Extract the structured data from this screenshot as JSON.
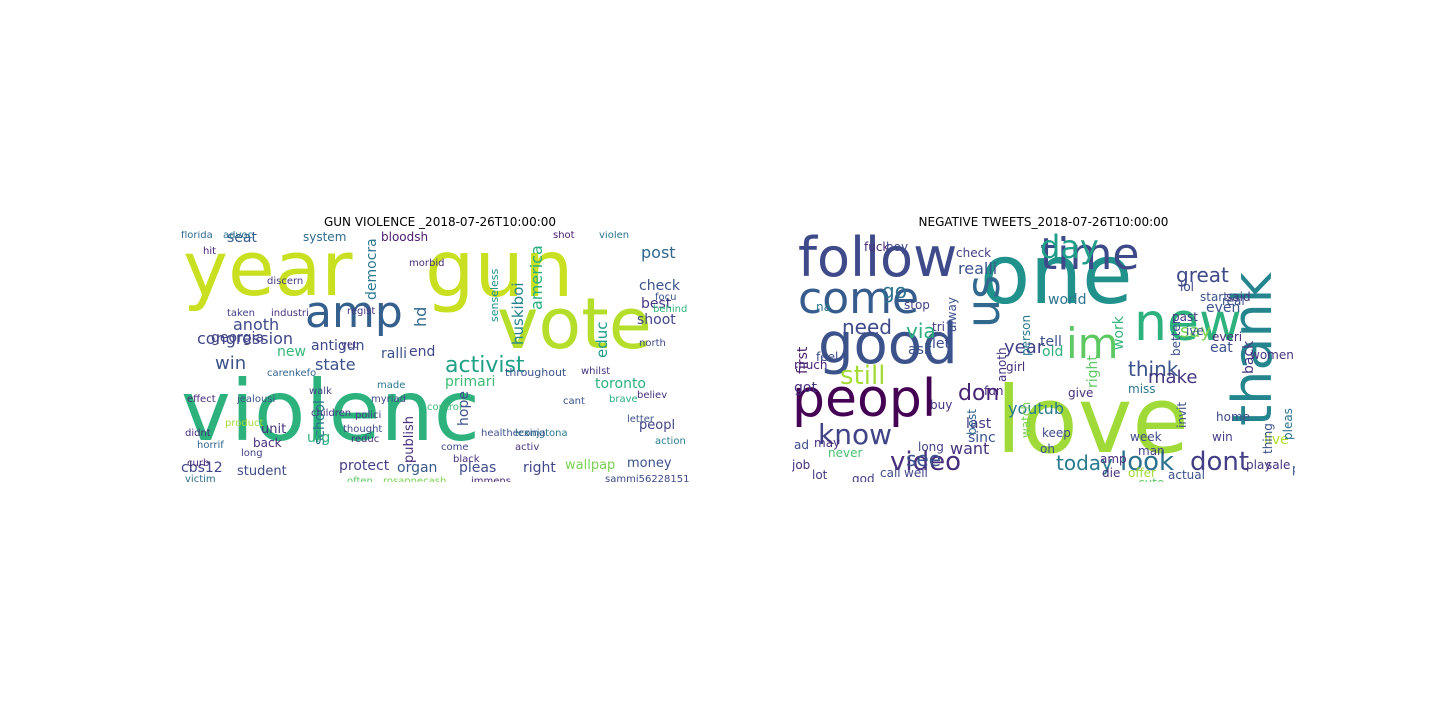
{
  "figure": {
    "left": {
      "title": "GUN VIOLENCE _2018-07-26T10:00:00",
      "words": [
        {
          "text": "violenc",
          "color": "#2db27d"
        },
        {
          "text": "year",
          "color": "#c8e020"
        },
        {
          "text": "gun",
          "color": "#c8e020"
        },
        {
          "text": "vote",
          "color": "#b5de2b"
        },
        {
          "text": "amp",
          "color": "#355f8d"
        },
        {
          "text": "activist",
          "color": "#1fa187"
        },
        {
          "text": "congression",
          "color": "#404688"
        },
        {
          "text": "win",
          "color": "#3b528b"
        },
        {
          "text": "anoth",
          "color": "#3e4a89"
        },
        {
          "text": "georgia",
          "color": "#414487"
        },
        {
          "text": "seat",
          "color": "#365c8d"
        },
        {
          "text": "state",
          "color": "#3b528b"
        },
        {
          "text": "antigun",
          "color": "#3e4989"
        },
        {
          "text": "ralli",
          "color": "#3b528b"
        },
        {
          "text": "democra",
          "color": "#2a788e"
        },
        {
          "text": "bloodsh",
          "color": "#481a6c"
        },
        {
          "text": "system",
          "color": "#306a8e"
        },
        {
          "text": "hd",
          "color": "#31688e"
        },
        {
          "text": "new",
          "color": "#37b878"
        },
        {
          "text": "end",
          "color": "#3f4788"
        },
        {
          "text": "primari",
          "color": "#3dbc74"
        },
        {
          "text": "school",
          "color": "#2c738e"
        },
        {
          "text": "unit",
          "color": "#46337e"
        },
        {
          "text": "back",
          "color": "#472d7b"
        },
        {
          "text": "student",
          "color": "#3e4a89"
        },
        {
          "text": "cbs12",
          "color": "#414487"
        },
        {
          "text": "urg",
          "color": "#2db27d"
        },
        {
          "text": "protect",
          "color": "#433e85"
        },
        {
          "text": "organ",
          "color": "#38588c"
        },
        {
          "text": "publish",
          "color": "#472f7d"
        },
        {
          "text": "pleas",
          "color": "#3e4c8a"
        },
        {
          "text": "right",
          "color": "#3f4788"
        },
        {
          "text": "hope",
          "color": "#3c508b"
        },
        {
          "text": "america",
          "color": "#2ab07f"
        },
        {
          "text": "educ",
          "color": "#1f9e89"
        },
        {
          "text": "huskiboi",
          "color": "#25858e"
        },
        {
          "text": "post",
          "color": "#31688e"
        },
        {
          "text": "check",
          "color": "#3b528b"
        },
        {
          "text": "best",
          "color": "#453781"
        },
        {
          "text": "shoot",
          "color": "#404588"
        },
        {
          "text": "toronto",
          "color": "#2db27d"
        },
        {
          "text": "peopl",
          "color": "#424186"
        },
        {
          "text": "wallpap",
          "color": "#7ad151"
        },
        {
          "text": "money",
          "color": "#3b528b"
        },
        {
          "text": "throughout",
          "color": "#3b528b"
        },
        {
          "text": "senseless",
          "color": "#21918c"
        },
        {
          "text": "florida",
          "color": "#31688e"
        },
        {
          "text": "advoc",
          "color": "#2c728e"
        },
        {
          "text": "hit",
          "color": "#482475"
        },
        {
          "text": "discern",
          "color": "#453882"
        },
        {
          "text": "taken",
          "color": "#424186"
        },
        {
          "text": "industri",
          "color": "#46337e"
        },
        {
          "text": "morbid",
          "color": "#472c7a"
        },
        {
          "text": "shot",
          "color": "#481a6c"
        },
        {
          "text": "violen",
          "color": "#2c728e"
        },
        {
          "text": "jealousi",
          "color": "#3b528b"
        },
        {
          "text": "effect",
          "color": "#482878"
        },
        {
          "text": "didnt",
          "color": "#472c7a"
        },
        {
          "text": "product",
          "color": "#a0da39"
        },
        {
          "text": "children",
          "color": "#453882"
        },
        {
          "text": "polici",
          "color": "#433e85"
        },
        {
          "text": "reduc",
          "color": "#472f7d"
        },
        {
          "text": "control",
          "color": "#3dbc74"
        },
        {
          "text": "come",
          "color": "#3e4989"
        },
        {
          "text": "activ",
          "color": "#46327e"
        },
        {
          "text": "lexingtona",
          "color": "#2a788e"
        },
        {
          "text": "cant",
          "color": "#3b528b"
        },
        {
          "text": "believ",
          "color": "#472f7d"
        },
        {
          "text": "north",
          "color": "#3e4a89"
        },
        {
          "text": "behind",
          "color": "#32b67a"
        },
        {
          "text": "focu",
          "color": "#3b528b"
        },
        {
          "text": "action",
          "color": "#287c8e"
        },
        {
          "text": "long",
          "color": "#424086"
        },
        {
          "text": "curb",
          "color": "#482677"
        },
        {
          "text": "victim",
          "color": "#2e6e8e"
        },
        {
          "text": "often",
          "color": "#5ec962"
        },
        {
          "text": "rosannecash",
          "color": "#7ad151"
        },
        {
          "text": "immens",
          "color": "#472a7a"
        },
        {
          "text": "sammi56228151",
          "color": "#3e4a89"
        },
        {
          "text": "statist",
          "color": "#c2df23"
        },
        {
          "text": "myriad",
          "color": "#3e4989"
        },
        {
          "text": "made",
          "color": "#2a788e"
        },
        {
          "text": "walk",
          "color": "#424186"
        },
        {
          "text": "carenkefo",
          "color": "#32648e"
        },
        {
          "text": "regist",
          "color": "#453781"
        },
        {
          "text": "horrif",
          "color": "#32648e"
        },
        {
          "text": "healtheconja",
          "color": "#3b528b"
        },
        {
          "text": "black",
          "color": "#472e7c"
        },
        {
          "text": "thought",
          "color": "#3e4a89"
        },
        {
          "text": "whilst",
          "color": "#46337e"
        },
        {
          "text": "brave",
          "color": "#29af7f"
        },
        {
          "text": "letter",
          "color": "#3b528b"
        },
        {
          "text": "yet",
          "color": "#453882"
        }
      ]
    },
    "right": {
      "title": "NEGATIVE TWEETS_2018-07-26T10:00:00",
      "words": [
        {
          "text": "love",
          "color": "#a0da39"
        },
        {
          "text": "one",
          "color": "#21918c"
        },
        {
          "text": "peopl",
          "color": "#440154"
        },
        {
          "text": "follow",
          "color": "#3e4a89"
        },
        {
          "text": "good",
          "color": "#3b528b"
        },
        {
          "text": "come",
          "color": "#365c8d"
        },
        {
          "text": "time",
          "color": "#3e4989"
        },
        {
          "text": "new",
          "color": "#2db27d"
        },
        {
          "text": "thank",
          "color": "#25858e"
        },
        {
          "text": "us",
          "color": "#31688e"
        },
        {
          "text": "im",
          "color": "#5ec962"
        },
        {
          "text": "day",
          "color": "#1f9e89"
        },
        {
          "text": "know",
          "color": "#414487"
        },
        {
          "text": "video",
          "color": "#472d7b"
        },
        {
          "text": "look",
          "color": "#2c728e"
        },
        {
          "text": "dont",
          "color": "#433e85"
        },
        {
          "text": "still",
          "color": "#a5db36"
        },
        {
          "text": "need",
          "color": "#3e4a89"
        },
        {
          "text": "via",
          "color": "#2ab07f"
        },
        {
          "text": "go",
          "color": "#2c728e"
        },
        {
          "text": "see",
          "color": "#3b528b"
        },
        {
          "text": "today",
          "color": "#287c8e"
        },
        {
          "text": "don",
          "color": "#482475"
        },
        {
          "text": "great",
          "color": "#3e4989"
        },
        {
          "text": "say",
          "color": "#7ad151"
        },
        {
          "text": "think",
          "color": "#3b528b"
        },
        {
          "text": "make",
          "color": "#453781"
        },
        {
          "text": "year",
          "color": "#424086"
        },
        {
          "text": "realli",
          "color": "#3b528b"
        },
        {
          "text": "first",
          "color": "#481a6c"
        },
        {
          "text": "want",
          "color": "#46327e"
        },
        {
          "text": "youtub",
          "color": "#2a788e"
        },
        {
          "text": "world",
          "color": "#2c738e"
        },
        {
          "text": "right",
          "color": "#5ec962"
        },
        {
          "text": "work",
          "color": "#35b779"
        },
        {
          "text": "let",
          "color": "#3e4a89"
        },
        {
          "text": "ask",
          "color": "#3b528b"
        },
        {
          "text": "last",
          "color": "#453882"
        },
        {
          "text": "sinc",
          "color": "#3b528b"
        },
        {
          "text": "even",
          "color": "#3b528b"
        },
        {
          "text": "live",
          "color": "#b5de2b"
        },
        {
          "text": "back",
          "color": "#453781"
        },
        {
          "text": "eat",
          "color": "#3b528b"
        },
        {
          "text": "fuck",
          "color": "#482878"
        },
        {
          "text": "boy",
          "color": "#3e4a89"
        },
        {
          "text": "check",
          "color": "#433e85"
        },
        {
          "text": "tell",
          "color": "#3b528b"
        },
        {
          "text": "old",
          "color": "#2db27d"
        },
        {
          "text": "give",
          "color": "#472f7d"
        },
        {
          "text": "got",
          "color": "#46337e"
        },
        {
          "text": "much",
          "color": "#482677"
        },
        {
          "text": "ad",
          "color": "#3e4a89"
        },
        {
          "text": "job",
          "color": "#472c7a"
        },
        {
          "text": "lot",
          "color": "#453882"
        },
        {
          "text": "never",
          "color": "#4ac16d"
        },
        {
          "text": "call",
          "color": "#3e4a89"
        },
        {
          "text": "well",
          "color": "#404588"
        },
        {
          "text": "buy",
          "color": "#472f7d"
        },
        {
          "text": "long",
          "color": "#424186"
        },
        {
          "text": "fun",
          "color": "#472a7a"
        },
        {
          "text": "best",
          "color": "#32648e"
        },
        {
          "text": "watch",
          "color": "#7ad151"
        },
        {
          "text": "oh",
          "color": "#3b528b"
        },
        {
          "text": "keep",
          "color": "#3e4a89"
        },
        {
          "text": "amp",
          "color": "#472f7d"
        },
        {
          "text": "die",
          "color": "#46337e"
        },
        {
          "text": "girl",
          "color": "#472e7c"
        },
        {
          "text": "actual",
          "color": "#3b528b"
        },
        {
          "text": "man",
          "color": "#424186"
        },
        {
          "text": "week",
          "color": "#3e4989"
        },
        {
          "text": "miss",
          "color": "#2a788e"
        },
        {
          "text": "real",
          "color": "#3b528b"
        },
        {
          "text": "everi",
          "color": "#472a7a"
        },
        {
          "text": "start",
          "color": "#3b528b"
        },
        {
          "text": "women",
          "color": "#46337e"
        },
        {
          "text": "home",
          "color": "#3e4a89"
        },
        {
          "text": "play",
          "color": "#453781"
        },
        {
          "text": "sale",
          "color": "#472e7c"
        },
        {
          "text": "post",
          "color": "#3b528b"
        },
        {
          "text": "win",
          "color": "#433e85"
        },
        {
          "text": "thing",
          "color": "#3b528b"
        },
        {
          "text": "pleas",
          "color": "#2c728e"
        },
        {
          "text": "lol",
          "color": "#3e4a89"
        },
        {
          "text": "ive",
          "color": "#3b528b"
        },
        {
          "text": "past",
          "color": "#453882"
        },
        {
          "text": "stop",
          "color": "#424186"
        },
        {
          "text": "may",
          "color": "#472f7d"
        },
        {
          "text": "na",
          "color": "#2a788e"
        },
        {
          "text": "alway",
          "color": "#3b528b"
        },
        {
          "text": "tri",
          "color": "#453781"
        },
        {
          "text": "offer",
          "color": "#a0da39"
        },
        {
          "text": "cute",
          "color": "#5ec962"
        },
        {
          "text": "better",
          "color": "#3b528b"
        },
        {
          "text": "said",
          "color": "#453882"
        },
        {
          "text": "person",
          "color": "#2a788e"
        },
        {
          "text": "invit",
          "color": "#3b528b"
        },
        {
          "text": "anoth",
          "color": "#46337e"
        },
        {
          "text": "feel",
          "color": "#3e4a89"
        },
        {
          "text": "god",
          "color": "#424086"
        },
        {
          "text": "noth",
          "color": "#472a7a"
        }
      ]
    }
  }
}
